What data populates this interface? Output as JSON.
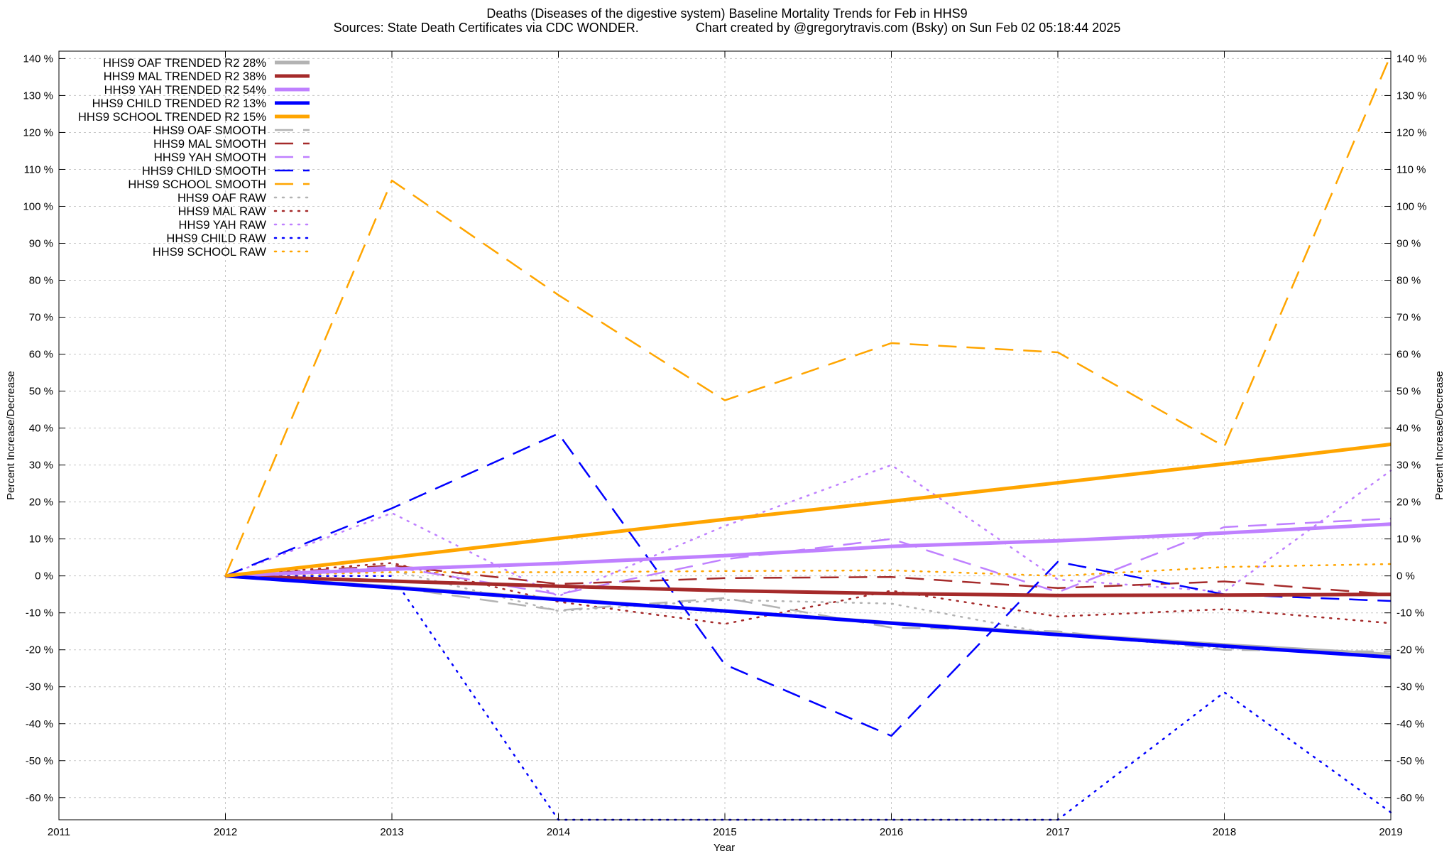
{
  "chart_data": {
    "type": "line",
    "title": "Deaths (Diseases of the digestive system)  Baseline Mortality Trends for Feb in HHS9",
    "subtitle": "Sources: State Death Certificates via CDC WONDER.                Chart created by @gregorytravis.com (Bsky) on Sun Feb 02 05:18:44 2025",
    "xlabel": "Year",
    "ylabel": "Percent Increase/Decrease",
    "y2label": "Percent Increase/Decrease",
    "xlim": [
      2011,
      2019
    ],
    "ylim": [
      -66,
      142
    ],
    "x_ticks": [
      2011,
      2012,
      2013,
      2014,
      2015,
      2016,
      2017,
      2018,
      2019
    ],
    "y_ticks": [
      140,
      130,
      120,
      110,
      100,
      90,
      80,
      70,
      60,
      50,
      40,
      30,
      20,
      10,
      0,
      -10,
      -20,
      -30,
      -40,
      -50,
      -60
    ],
    "y_tick_suffix": " %",
    "grid": true,
    "legend_position": "top-left",
    "x": [
      2012,
      2013,
      2014,
      2015,
      2016,
      2017,
      2018,
      2019
    ],
    "series": [
      {
        "name": "HHS9 OAF TRENDED R2  28%",
        "color": "#b3b3b3",
        "style": "solid",
        "width": 5,
        "values": [
          0,
          -3,
          -6.3,
          -9.5,
          -12.7,
          -15.7,
          -18.7,
          -21.3
        ]
      },
      {
        "name": "HHS9 MAL TRENDED R2  38%",
        "color": "#a52a2a",
        "style": "solid",
        "width": 5,
        "values": [
          0,
          -1.4,
          -2.8,
          -4,
          -4.8,
          -5.3,
          -5.2,
          -5
        ]
      },
      {
        "name": "HHS9 YAH TRENDED R2  54%",
        "color": "#bf80ff",
        "style": "solid",
        "width": 5,
        "values": [
          0,
          1.8,
          3.4,
          5.5,
          8,
          9.5,
          11.6,
          14
        ]
      },
      {
        "name": "HHS9 CHILD TRENDED R2  13%",
        "color": "#0000ff",
        "style": "solid",
        "width": 5,
        "values": [
          0,
          -3.2,
          -6.4,
          -9.5,
          -12.8,
          -15.9,
          -19,
          -22
        ]
      },
      {
        "name": "HHS9 SCHOOL TRENDED R2  15%",
        "color": "#ffa500",
        "style": "solid",
        "width": 5,
        "values": [
          0,
          5,
          10.2,
          15.3,
          20.2,
          25.2,
          30.3,
          35.6
        ]
      },
      {
        "name": "HHS9 OAF SMOOTH",
        "color": "#b3b3b3",
        "style": "dashed",
        "width": 2.5,
        "values": [
          0,
          -3,
          -9.3,
          -6,
          -14,
          -15,
          -20,
          -20.5
        ]
      },
      {
        "name": "HHS9 MAL SMOOTH",
        "color": "#a52a2a",
        "style": "dashed",
        "width": 2.5,
        "values": [
          0,
          2.8,
          -2.2,
          -0.6,
          -0.3,
          -3.3,
          -1.5,
          -5
        ]
      },
      {
        "name": "HHS9 YAH SMOOTH",
        "color": "#bf80ff",
        "style": "dashed",
        "width": 2.5,
        "values": [
          0,
          2.5,
          -5,
          4.5,
          10,
          -4.4,
          13.2,
          15.5
        ]
      },
      {
        "name": "HHS9 CHILD SMOOTH",
        "color": "#0000ff",
        "style": "dashed",
        "width": 2.5,
        "values": [
          0,
          18.3,
          38.5,
          -24,
          -43.3,
          3.8,
          -5,
          -6.8
        ]
      },
      {
        "name": "HHS9 SCHOOL SMOOTH",
        "color": "#ffa500",
        "style": "dashed",
        "width": 2.5,
        "values": [
          0,
          107,
          76,
          47.5,
          63,
          60.5,
          35,
          141
        ]
      },
      {
        "name": "HHS9 OAF RAW",
        "color": "#b3b3b3",
        "style": "dotted",
        "width": 2.5,
        "values": [
          0,
          1.5,
          -9.5,
          -6.5,
          -7.5,
          -16,
          -19.5,
          -21.2
        ]
      },
      {
        "name": "HHS9 MAL RAW",
        "color": "#a52a2a",
        "style": "dotted",
        "width": 2.5,
        "values": [
          0,
          3.5,
          -7,
          -13,
          -4,
          -11,
          -9,
          -12.8
        ]
      },
      {
        "name": "HHS9 YAH RAW",
        "color": "#bf80ff",
        "style": "dotted",
        "width": 2.5,
        "values": [
          0,
          17,
          -5.5,
          13.5,
          30,
          -1,
          -4.3,
          28.5
        ]
      },
      {
        "name": "HHS9 CHILD RAW",
        "color": "#0000ff",
        "style": "dotted",
        "width": 2.5,
        "values": [
          0,
          0,
          -66,
          -66,
          -66,
          -66,
          -31.5,
          -64
        ]
      },
      {
        "name": "HHS9 SCHOOL RAW",
        "color": "#ffa500",
        "style": "dotted",
        "width": 2.5,
        "values": [
          0,
          1,
          1,
          1.3,
          1.5,
          0,
          2.4,
          3.2
        ]
      }
    ]
  }
}
